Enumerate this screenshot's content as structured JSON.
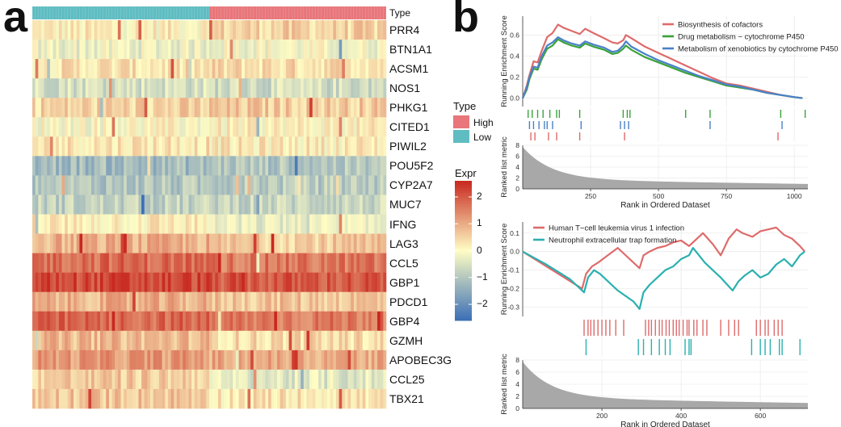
{
  "panel_a": {
    "letter": "a",
    "type_label": "Type",
    "genes": [
      "PRR4",
      "BTN1A1",
      "ACSM1",
      "NOS1",
      "PHKG1",
      "CITED1",
      "PIWIL2",
      "POU5F2",
      "CYP2A7",
      "MUC7",
      "IFNG",
      "LAG3",
      "CCL5",
      "GBP1",
      "PDCD1",
      "GBP4",
      "GZMH",
      "APOBEC3G",
      "CCL25",
      "TBX21"
    ],
    "type_legend": {
      "title": "Type",
      "items": [
        {
          "label": "High",
          "color": "#e8767a"
        },
        {
          "label": "Low",
          "color": "#5fbdc2"
        }
      ]
    },
    "expr_legend": {
      "title": "Expr",
      "ticks": [
        "2",
        "1",
        "0",
        "−1",
        "−2"
      ],
      "tick_values": [
        2,
        1,
        0,
        -1,
        -2
      ],
      "range": [
        -2.6,
        2.6
      ]
    },
    "chart_data": {
      "type": "heatmap",
      "rows": [
        "PRR4",
        "BTN1A1",
        "ACSM1",
        "NOS1",
        "PHKG1",
        "CITED1",
        "PIWIL2",
        "POU5F2",
        "CYP2A7",
        "MUC7",
        "IFNG",
        "LAG3",
        "CCL5",
        "GBP1",
        "PDCD1",
        "GBP4",
        "GZMH",
        "APOBEC3G",
        "CCL25",
        "TBX21"
      ],
      "column_groups": [
        {
          "name": "Low",
          "fraction": 0.5
        },
        {
          "name": "High",
          "fraction": 0.5
        }
      ],
      "row_mean_low": [
        0.15,
        -0.2,
        0.3,
        -0.5,
        0.5,
        0.0,
        0.3,
        -1.2,
        -1.0,
        -0.8,
        0.2,
        0.9,
        1.8,
        2.2,
        0.9,
        1.8,
        0.8,
        1.2,
        0.6,
        0.7
      ],
      "row_mean_high": [
        0.5,
        -0.1,
        0.4,
        -0.6,
        0.6,
        0.1,
        0.2,
        -1.0,
        -0.9,
        -0.7,
        -0.3,
        0.6,
        1.6,
        2.0,
        0.7,
        1.6,
        0.4,
        1.0,
        -0.4,
        0.3
      ],
      "value_range": [
        -2.6,
        2.6
      ],
      "color_scale": [
        "#3b6fb6",
        "#fffdc4",
        "#c8281f"
      ],
      "legend_title": "Expr"
    }
  },
  "panel_b": {
    "letter": "b",
    "top": {
      "ylabel_es": "Running Enrichment Score",
      "ylabel_metric": "Ranked list metric",
      "xlabel": "Rank in Ordered Dataset",
      "chart_data": {
        "type": "line",
        "title": "",
        "xlabel": "Rank in Ordered Dataset",
        "ylabel": "Running Enrichment Score",
        "xlim": [
          0,
          1050
        ],
        "ylim": [
          -0.08,
          0.78
        ],
        "x_ticks": [
          250,
          500,
          750,
          1000
        ],
        "y_ticks": [
          0.0,
          0.2,
          0.4,
          0.6
        ],
        "metric_ylim": [
          0,
          8
        ],
        "metric_ticks": [
          0,
          2,
          4,
          6,
          8
        ],
        "series": [
          {
            "name": "Biosynthesis of cofactors",
            "color": "#de6b6b",
            "x": [
              0,
              15,
              25,
              40,
              55,
              70,
              90,
              110,
              130,
              150,
              180,
              210,
              230,
              260,
              300,
              330,
              350,
              370,
              380,
              400,
              450,
              500,
              550,
              600,
              650,
              700,
              750,
              800,
              850,
              900,
              950,
              1000,
              1030
            ],
            "y": [
              0,
              0.12,
              0.22,
              0.35,
              0.34,
              0.45,
              0.58,
              0.62,
              0.7,
              0.67,
              0.64,
              0.61,
              0.66,
              0.62,
              0.57,
              0.53,
              0.52,
              0.55,
              0.6,
              0.57,
              0.49,
              0.43,
              0.37,
              0.31,
              0.25,
              0.19,
              0.14,
              0.12,
              0.09,
              0.06,
              0.03,
              0.01,
              0.0
            ]
          },
          {
            "name": "Drug metabolism − cytochrome P450",
            "color": "#3aa33a",
            "x": [
              0,
              15,
              25,
              40,
              55,
              70,
              90,
              110,
              130,
              150,
              180,
              210,
              230,
              260,
              300,
              330,
              350,
              370,
              380,
              400,
              450,
              500,
              550,
              600,
              650,
              700,
              750,
              800,
              850,
              900,
              950,
              1000,
              1030
            ],
            "y": [
              0,
              0.08,
              0.18,
              0.28,
              0.27,
              0.37,
              0.47,
              0.5,
              0.56,
              0.53,
              0.5,
              0.48,
              0.52,
              0.49,
              0.46,
              0.42,
              0.43,
              0.47,
              0.5,
              0.46,
              0.39,
              0.34,
              0.29,
              0.24,
              0.2,
              0.16,
              0.12,
              0.1,
              0.08,
              0.05,
              0.03,
              0.01,
              0.0
            ]
          },
          {
            "name": "Metabolism of xenobiotics by cytochrome P450",
            "color": "#4a80c9",
            "x": [
              0,
              15,
              25,
              40,
              55,
              70,
              90,
              110,
              130,
              150,
              180,
              210,
              230,
              260,
              300,
              330,
              350,
              370,
              380,
              400,
              450,
              500,
              550,
              600,
              650,
              700,
              750,
              800,
              850,
              900,
              950,
              1000,
              1030
            ],
            "y": [
              0,
              0.1,
              0.2,
              0.3,
              0.29,
              0.4,
              0.5,
              0.53,
              0.58,
              0.55,
              0.52,
              0.5,
              0.54,
              0.51,
              0.48,
              0.44,
              0.45,
              0.5,
              0.54,
              0.49,
              0.42,
              0.36,
              0.31,
              0.26,
              0.21,
              0.17,
              0.13,
              0.11,
              0.08,
              0.05,
              0.03,
              0.01,
              0.0
            ]
          }
        ],
        "hits": [
          {
            "series": "Drug metabolism − cytochrome P450",
            "ranks": [
              20,
              35,
              55,
              75,
              100,
              125,
              135,
              210,
              370,
              385,
              395,
              600,
              690,
              950,
              1040
            ]
          },
          {
            "series": "Metabolism of xenobiotics by cytochrome P450",
            "ranks": [
              25,
              40,
              60,
              80,
              90,
              110,
              215,
              360,
              375,
              390,
              690,
              955
            ]
          },
          {
            "series": "Biosynthesis of cofactors",
            "ranks": [
              30,
              45,
              95,
              125,
              210,
              375,
              940
            ]
          }
        ]
      },
      "legend": [
        {
          "label": "Biosynthesis of cofactors",
          "color": "#de6b6b"
        },
        {
          "label": "Drug metabolism − cytochrome P450",
          "color": "#3aa33a"
        },
        {
          "label": "Metabolism of xenobiotics by cytochrome P450",
          "color": "#4a80c9"
        }
      ]
    },
    "bottom": {
      "ylabel_es": "Running Enrichment Score",
      "ylabel_metric": "Ranked list metric",
      "xlabel": "Rank in Ordered Dataset",
      "chart_data": {
        "type": "line",
        "title": "",
        "xlabel": "Rank in Ordered Dataset",
        "ylabel": "Running Enrichment Score",
        "xlim": [
          0,
          720
        ],
        "ylim": [
          -0.35,
          0.16
        ],
        "x_ticks": [
          200,
          400,
          600
        ],
        "y_ticks": [
          -0.3,
          -0.2,
          -0.1,
          0.0,
          0.1
        ],
        "metric_ylim": [
          0,
          8
        ],
        "metric_ticks": [
          0,
          2,
          4,
          6,
          8
        ],
        "series": [
          {
            "name": "Human T−cell leukemia virus 1 infection",
            "color": "#de6b6b",
            "x": [
              0,
              60,
              120,
              150,
              160,
              175,
              190,
              215,
              240,
              270,
              295,
              305,
              320,
              340,
              360,
              380,
              400,
              420,
              440,
              455,
              480,
              500,
              520,
              540,
              555,
              580,
              600,
              620,
              640,
              660,
              680,
              700,
              712
            ],
            "y": [
              0,
              -0.08,
              -0.16,
              -0.2,
              -0.12,
              -0.08,
              -0.06,
              -0.02,
              0.02,
              -0.04,
              -0.09,
              -0.02,
              0.0,
              0.02,
              0.03,
              0.05,
              0.06,
              0.03,
              0.07,
              0.1,
              0.04,
              -0.02,
              0.07,
              0.12,
              0.1,
              0.08,
              0.11,
              0.12,
              0.13,
              0.09,
              0.07,
              0.03,
              0.0
            ]
          },
          {
            "name": "Neutrophil extracellular trap formation",
            "color": "#2bb0b0",
            "x": [
              0,
              60,
              120,
              155,
              165,
              180,
              195,
              240,
              280,
              295,
              305,
              320,
              340,
              360,
              380,
              400,
              420,
              430,
              460,
              500,
              530,
              545,
              560,
              580,
              600,
              620,
              640,
              660,
              680,
              700,
              712
            ],
            "y": [
              0,
              -0.07,
              -0.15,
              -0.22,
              -0.14,
              -0.1,
              -0.12,
              -0.21,
              -0.27,
              -0.31,
              -0.22,
              -0.18,
              -0.14,
              -0.1,
              -0.08,
              -0.04,
              -0.02,
              0.02,
              -0.06,
              -0.14,
              -0.21,
              -0.16,
              -0.13,
              -0.1,
              -0.14,
              -0.12,
              -0.07,
              -0.04,
              -0.08,
              -0.02,
              0.0
            ]
          }
        ],
        "hits": [
          {
            "series": "Human T−cell leukemia virus 1 infection",
            "ranks": [
              155,
              165,
              172,
              180,
              190,
              200,
              210,
              220,
              235,
              255,
              310,
              318,
              325,
              335,
              345,
              352,
              362,
              370,
              380,
              388,
              395,
              405,
              415,
              420,
              432,
              440,
              455,
              465,
              500,
              520,
              535,
              545,
              590,
              600,
              612,
              620,
              635,
              645,
              655
            ]
          },
          {
            "series": "Neutrophil extracellular trap formation",
            "ranks": [
              160,
              292,
              305,
              325,
              345,
              360,
              372,
              410,
              420,
              425,
              578,
              600,
              612,
              625,
              648,
              655,
              700
            ]
          }
        ]
      },
      "legend": [
        {
          "label": "Human T−cell leukemia virus 1 infection",
          "color": "#de6b6b"
        },
        {
          "label": "Neutrophil extracellular trap formation",
          "color": "#2bb0b0"
        }
      ]
    }
  }
}
